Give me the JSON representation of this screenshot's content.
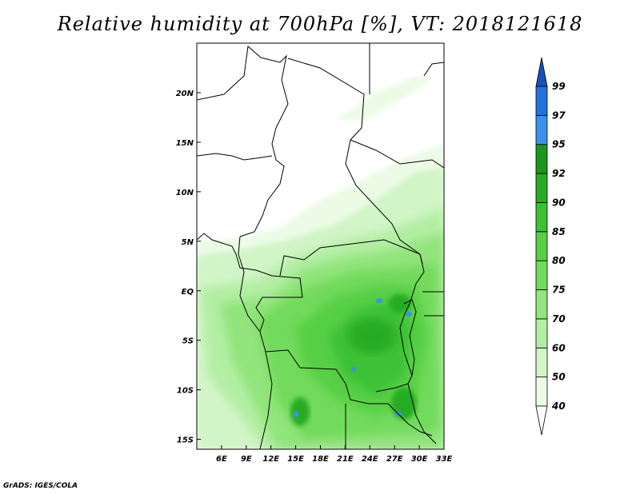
{
  "title": "Relative humidity at 700hPa [%], VT: 2018121618",
  "credit": "GrADS: IGES/COLA",
  "map": {
    "lon_range": [
      3,
      33
    ],
    "lat_range": [
      -16,
      25
    ],
    "lon_ticks": [
      "6E",
      "9E",
      "12E",
      "15E",
      "18E",
      "21E",
      "24E",
      "27E",
      "30E",
      "33E"
    ],
    "lat_ticks": [
      "20N",
      "15N",
      "10N",
      "5N",
      "EQ",
      "5S",
      "10S",
      "15S"
    ]
  },
  "colorbar": {
    "labels": [
      "40",
      "50",
      "60",
      "70",
      "75",
      "80",
      "85",
      "90",
      "92",
      "95",
      "97",
      "99"
    ],
    "colors": [
      "#ecfbe6",
      "#d2f5c8",
      "#b2eea3",
      "#92e47c",
      "#72da5c",
      "#56cf44",
      "#3dc134",
      "#28ac24",
      "#1a961a",
      "#3d91ec",
      "#2472dc",
      "#1850b8"
    ]
  }
}
